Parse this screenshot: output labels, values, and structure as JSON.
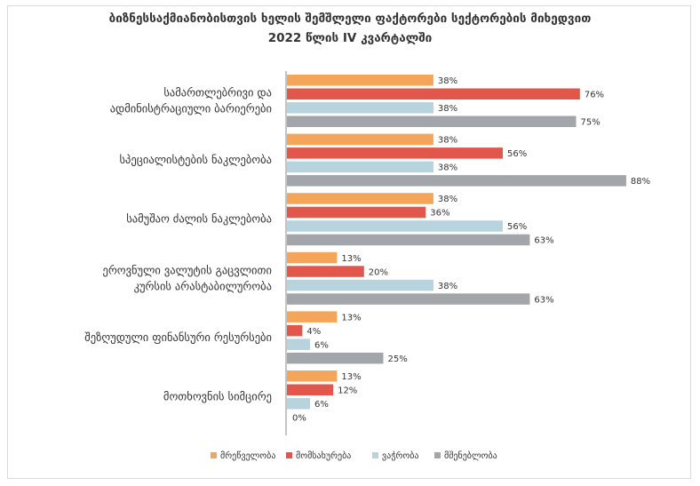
{
  "chart_data": {
    "type": "bar",
    "orientation": "horizontal",
    "title": "ბიზნესსაქმიანობისთვის ხელის შემშლელი ფაქტორები სექტორების მიხედვით",
    "subtitle": "2022 წლის IV კვარტალში",
    "categories": [
      [
        "სამართლებრივი და",
        "ადმინისტრაციული ბარიერები"
      ],
      [
        "სპეციალისტების ნაკლებობა"
      ],
      [
        "სამუშაო ძალის ნაკლებობა"
      ],
      [
        "ეროვნული ვალუტის გაცვლითი",
        "კურსის არასტაბილურობა"
      ],
      [
        "შეზღუდული ფინანსური რესურსები"
      ],
      [
        "მოთხოვნის სიმცირე"
      ]
    ],
    "series": [
      {
        "name": "მრეწველობა",
        "color": "#F5A55A",
        "values": [
          38,
          38,
          38,
          13,
          13,
          13
        ],
        "labels": [
          "38%",
          "38%",
          "38%",
          "13%",
          "13%",
          "13%"
        ]
      },
      {
        "name": "მომსახურება",
        "color": "#E2574C",
        "values": [
          76,
          56,
          36,
          20,
          4,
          12
        ],
        "labels": [
          "76%",
          "56%",
          "36%",
          "20%",
          "4%",
          "12%"
        ]
      },
      {
        "name": "ვაჭრობა",
        "color": "#B7D3DD",
        "values": [
          38,
          38,
          56,
          38,
          6,
          6
        ],
        "labels": [
          "38%",
          "38%",
          "56%",
          "38%",
          "6%",
          "6%"
        ]
      },
      {
        "name": "მშენებლობა",
        "color": "#A2A5A9",
        "values": [
          75,
          88,
          63,
          63,
          25,
          0
        ],
        "labels": [
          "75%",
          "88%",
          "63%",
          "63%",
          "25%",
          "0%"
        ]
      }
    ],
    "xlim": [
      0,
      100
    ],
    "legend": "bottom",
    "grid": false
  }
}
